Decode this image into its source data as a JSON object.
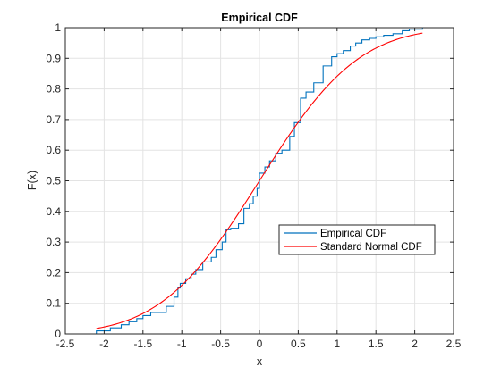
{
  "chart_data": {
    "type": "line",
    "title": "Empirical CDF",
    "xlabel": "x",
    "ylabel": "F(x)",
    "xlim": [
      -2.5,
      2.5
    ],
    "ylim": [
      0,
      1
    ],
    "xticks": [
      "-2.5",
      "-2",
      "-1.5",
      "-1",
      "-0.5",
      "0",
      "0.5",
      "1",
      "1.5",
      "2",
      "2.5"
    ],
    "yticks": [
      "0",
      "0.1",
      "0.2",
      "0.3",
      "0.4",
      "0.5",
      "0.6",
      "0.7",
      "0.8",
      "0.9",
      "1"
    ],
    "grid": true,
    "legend_position": "center-right",
    "series": [
      {
        "name": "Empirical CDF",
        "kind": "stairs",
        "color": "#0072BD",
        "x": [
          -2.1,
          -2.1,
          -1.92,
          -1.78,
          -1.68,
          -1.58,
          -1.5,
          -1.4,
          -1.2,
          -1.1,
          -1.05,
          -1.02,
          -0.95,
          -0.88,
          -0.82,
          -0.73,
          -0.62,
          -0.56,
          -0.48,
          -0.43,
          -0.37,
          -0.27,
          -0.2,
          -0.13,
          -0.08,
          -0.03,
          0.0,
          0.07,
          0.13,
          0.21,
          0.29,
          0.39,
          0.45,
          0.53,
          0.6,
          0.7,
          0.82,
          0.93,
          1.0,
          1.08,
          1.17,
          1.24,
          1.32,
          1.42,
          1.5,
          1.6,
          1.72,
          1.84,
          1.93,
          2.1
        ],
        "y": [
          0.0,
          0.01,
          0.02,
          0.03,
          0.04,
          0.05,
          0.06,
          0.07,
          0.09,
          0.12,
          0.15,
          0.165,
          0.18,
          0.195,
          0.21,
          0.235,
          0.25,
          0.275,
          0.3,
          0.34,
          0.345,
          0.36,
          0.41,
          0.425,
          0.45,
          0.475,
          0.525,
          0.545,
          0.565,
          0.59,
          0.6,
          0.645,
          0.69,
          0.77,
          0.79,
          0.82,
          0.875,
          0.905,
          0.915,
          0.925,
          0.94,
          0.95,
          0.96,
          0.965,
          0.97,
          0.975,
          0.98,
          0.99,
          0.995,
          1.0
        ]
      },
      {
        "name": "Standard Normal CDF",
        "kind": "normal-cdf",
        "color": "#FF0000",
        "domain": [
          -2.1,
          2.1
        ]
      }
    ]
  }
}
